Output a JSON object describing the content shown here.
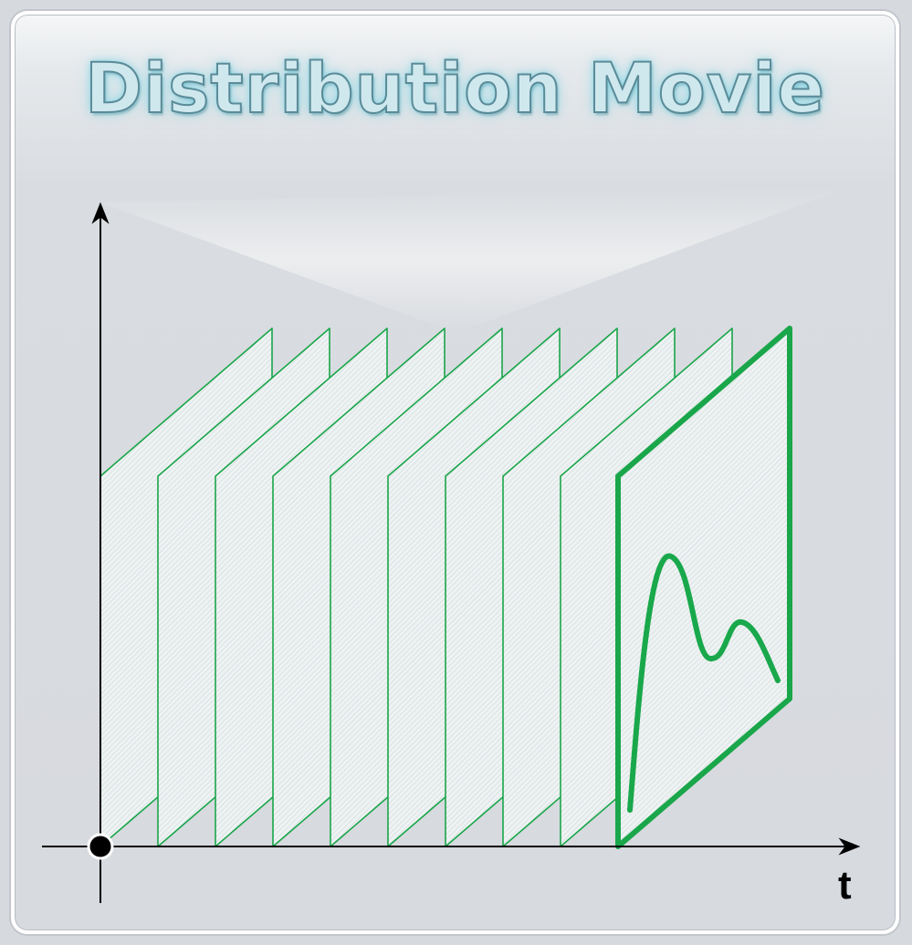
{
  "title": "Distribution Movie",
  "axis": {
    "x_label": "t"
  },
  "frames": {
    "count": 10,
    "highlighted_index": 9
  },
  "colors": {
    "frame_stroke": "#1aa64a",
    "frame_fill": "#e8eeee",
    "curve": "#19a84b",
    "axis": "#000000"
  }
}
